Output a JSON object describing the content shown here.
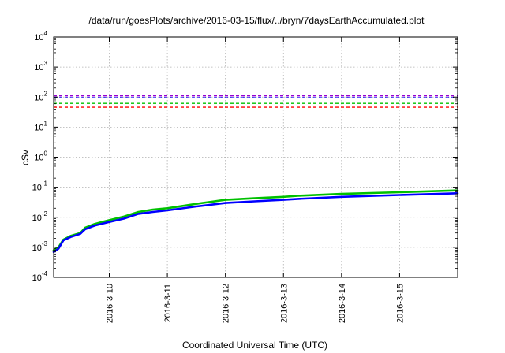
{
  "chart_data": {
    "type": "line",
    "title": "/data/run/goesPlots/archive/2016-03-15/flux/../bryn/7daysEarthAccumulated.plot",
    "xlabel": "Coordinated Universal Time (UTC)",
    "ylabel": "cSv",
    "yscale": "log",
    "ylim": [
      0.0001,
      10000
    ],
    "xlim": [
      "2016-03-09T01:00",
      "2016-03-16T00:00"
    ],
    "x_ticks": [
      "2016-3-10",
      "2016-3-11",
      "2016-3-12",
      "2016-3-13",
      "2016-3-14",
      "2016-3-15"
    ],
    "y_ticks": [
      {
        "value": 0.0001,
        "base": "10",
        "exp": "-4"
      },
      {
        "value": 0.001,
        "base": "10",
        "exp": "-3"
      },
      {
        "value": 0.01,
        "base": "10",
        "exp": "-2"
      },
      {
        "value": 0.1,
        "base": "10",
        "exp": "-1"
      },
      {
        "value": 1,
        "base": "10",
        "exp": "0"
      },
      {
        "value": 10,
        "base": "10",
        "exp": "1"
      },
      {
        "value": 100,
        "base": "10",
        "exp": "2"
      },
      {
        "value": 1000,
        "base": "10",
        "exp": "3"
      },
      {
        "value": 10000,
        "base": "10",
        "exp": "4"
      }
    ],
    "grid": true,
    "thresholds": [
      {
        "value": 110,
        "color": "#9400d3"
      },
      {
        "value": 95,
        "color": "#0000ff"
      },
      {
        "value": 62,
        "color": "#00c000"
      },
      {
        "value": 46,
        "color": "#ff0000"
      }
    ],
    "series": [
      {
        "color": "#00c000",
        "points": [
          [
            "2016-03-09T01:00",
            0.0008
          ],
          [
            "2016-03-09T03:00",
            0.001
          ],
          [
            "2016-03-09T05:00",
            0.0018
          ],
          [
            "2016-03-09T08:00",
            0.0024
          ],
          [
            "2016-03-09T12:00",
            0.003
          ],
          [
            "2016-03-09T14:00",
            0.0045
          ],
          [
            "2016-03-09T18:00",
            0.006
          ],
          [
            "2016-03-10T00:00",
            0.008
          ],
          [
            "2016-03-10T06:00",
            0.0105
          ],
          [
            "2016-03-10T12:00",
            0.015
          ],
          [
            "2016-03-10T18:00",
            0.018
          ],
          [
            "2016-03-11T00:00",
            0.02
          ],
          [
            "2016-03-11T12:00",
            0.028
          ],
          [
            "2016-03-12T00:00",
            0.038
          ],
          [
            "2016-03-12T12:00",
            0.043
          ],
          [
            "2016-03-13T00:00",
            0.048
          ],
          [
            "2016-03-13T06:00",
            0.052
          ],
          [
            "2016-03-14T00:00",
            0.06
          ],
          [
            "2016-03-15T00:00",
            0.068
          ],
          [
            "2016-03-16T00:00",
            0.078
          ]
        ]
      },
      {
        "color": "#0000ff",
        "points": [
          [
            "2016-03-09T01:00",
            0.0007
          ],
          [
            "2016-03-09T03:00",
            0.0009
          ],
          [
            "2016-03-09T05:00",
            0.0017
          ],
          [
            "2016-03-09T08:00",
            0.0022
          ],
          [
            "2016-03-09T12:00",
            0.0028
          ],
          [
            "2016-03-09T14:00",
            0.004
          ],
          [
            "2016-03-09T18:00",
            0.0053
          ],
          [
            "2016-03-10T00:00",
            0.007
          ],
          [
            "2016-03-10T06:00",
            0.009
          ],
          [
            "2016-03-10T12:00",
            0.013
          ],
          [
            "2016-03-10T18:00",
            0.015
          ],
          [
            "2016-03-11T00:00",
            0.017
          ],
          [
            "2016-03-11T12:00",
            0.023
          ],
          [
            "2016-03-12T00:00",
            0.03
          ],
          [
            "2016-03-12T12:00",
            0.034
          ],
          [
            "2016-03-13T00:00",
            0.038
          ],
          [
            "2016-03-13T06:00",
            0.041
          ],
          [
            "2016-03-14T00:00",
            0.048
          ],
          [
            "2016-03-15T00:00",
            0.055
          ],
          [
            "2016-03-16T00:00",
            0.063
          ]
        ]
      }
    ]
  }
}
